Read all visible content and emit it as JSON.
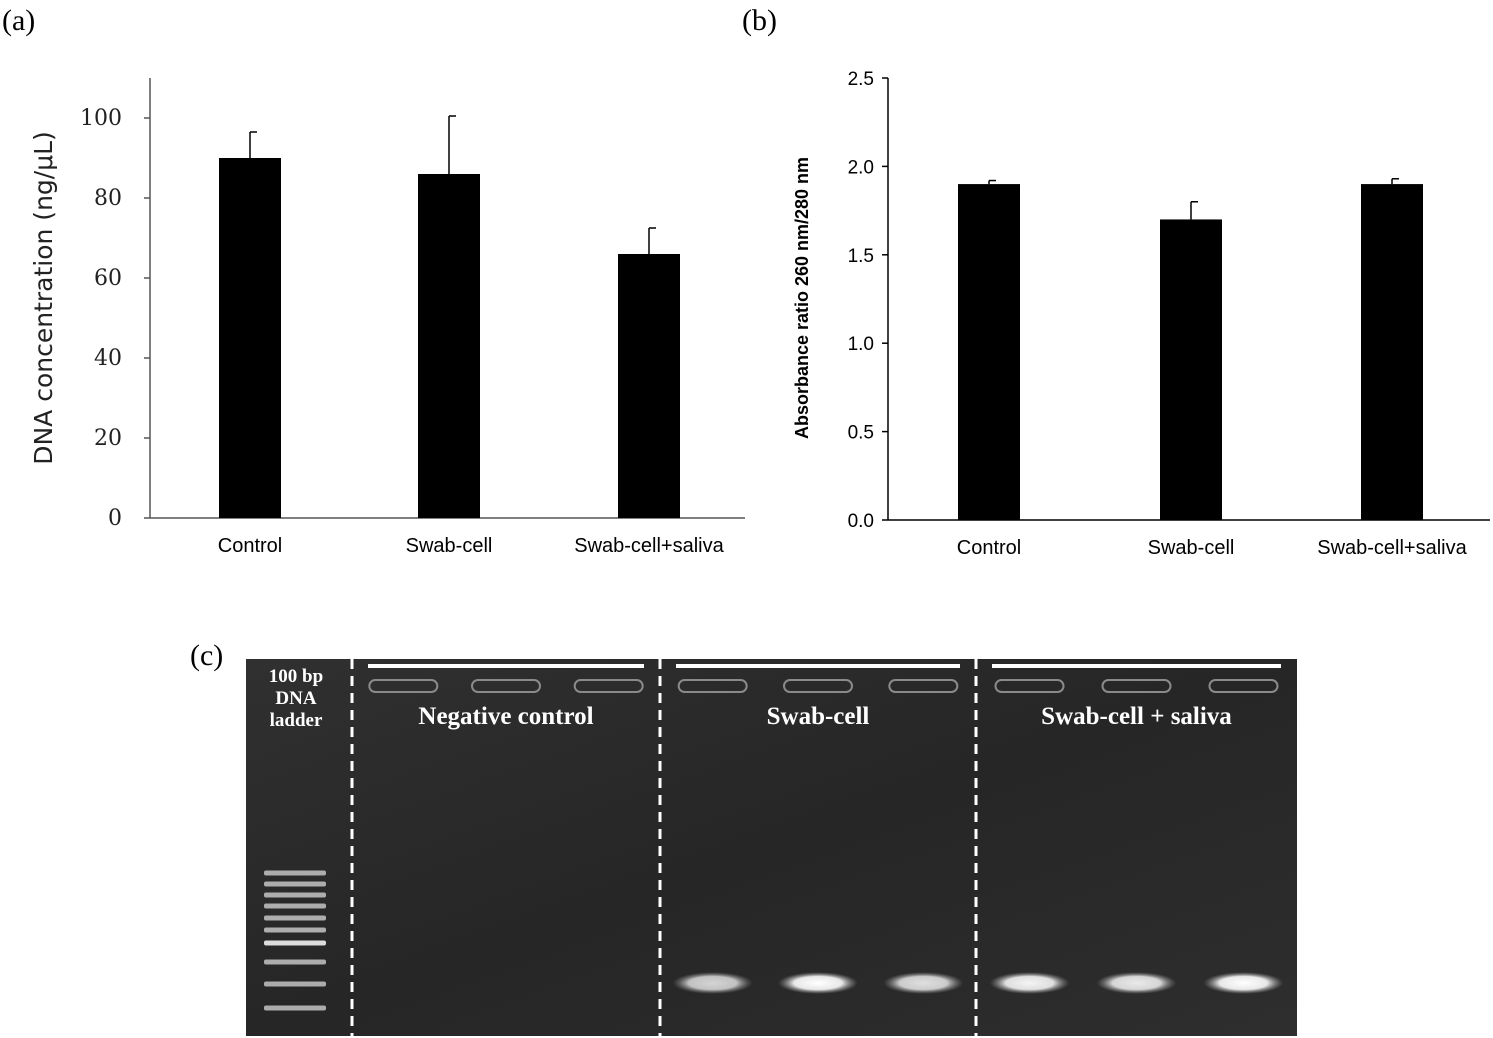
{
  "chart_data": [
    {
      "panel": "(a)",
      "type": "bar",
      "categories": [
        "Control",
        "Swab-cell",
        "Swab-cell+saliva"
      ],
      "values": [
        90,
        86,
        66
      ],
      "errors": [
        6.5,
        14.5,
        6.5
      ],
      "ylabel": "DNA concentration (ng/μL)",
      "ylim": [
        0,
        110
      ],
      "yticks": [
        0,
        20,
        40,
        60,
        80,
        100
      ],
      "grid": false,
      "bar_color": "#000000"
    },
    {
      "panel": "(b)",
      "type": "bar",
      "categories": [
        "Control",
        "Swab-cell",
        "Swab-cell+saliva"
      ],
      "values": [
        1.9,
        1.7,
        1.9
      ],
      "errors": [
        0.02,
        0.1,
        0.03
      ],
      "ylabel": "Absorbance ratio 260 nm/280 nm",
      "ylim": [
        0,
        2.5
      ],
      "yticks": [
        "0.0",
        "0.5",
        "1.0",
        "1.5",
        "2.0",
        "2.5"
      ],
      "grid": false,
      "bar_color": "#000000"
    }
  ],
  "gel": {
    "panel": "(c)",
    "ladder_label": [
      "100  bp",
      "DNA",
      "ladder"
    ],
    "groups": [
      "Negative  control",
      "Swab-cell",
      "Swab-cell + saliva"
    ],
    "lanes_per_group": 3,
    "band_intensity": [
      [
        0,
        0,
        0
      ],
      [
        0.8,
        1.0,
        0.85
      ],
      [
        0.95,
        0.9,
        1.0
      ]
    ],
    "gel_color": "#2b2b2b",
    "band_color": "#ffffff"
  }
}
